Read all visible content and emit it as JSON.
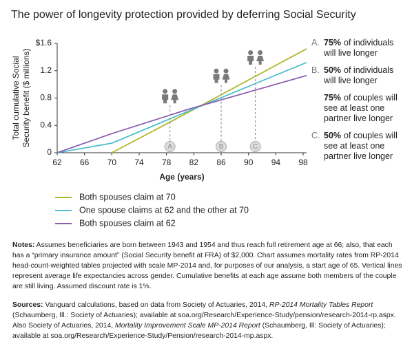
{
  "chart_data": {
    "type": "line",
    "title": "The power of longevity protection provided by deferring Social Security",
    "ylabel": [
      "Total cumulative Social",
      "Security benefit ($ millions)"
    ],
    "xlabel": "Age (years)",
    "x": [
      62,
      70,
      81,
      98.5
    ],
    "series": [
      {
        "name": "Both spouses claim at 70",
        "color": "#b3b52a",
        "values": [
          null,
          0,
          0.58,
          1.52
        ]
      },
      {
        "name": "One spouse claims at 62 and the other at 70",
        "color": "#4cbfcc",
        "values": [
          0,
          0.14,
          0.6,
          1.32
        ]
      },
      {
        "name": "Both spouses claim at 62",
        "color": "#8a5fb0",
        "values": [
          0,
          0.28,
          0.63,
          1.13
        ]
      }
    ],
    "xlim": [
      62,
      98.5
    ],
    "xticks": [
      62,
      66,
      70,
      74,
      78,
      82,
      86,
      90,
      94,
      98
    ],
    "ylim": [
      0,
      1.6
    ],
    "yticks": [
      0,
      0.4,
      0.8,
      1.2,
      {
        "value": 1.6,
        "label": "$1.6"
      }
    ],
    "annotations": [
      {
        "x": 78.5,
        "label": "A"
      },
      {
        "x": 86,
        "label": "B"
      },
      {
        "x": 91,
        "label": "C"
      }
    ],
    "side_notes": [
      {
        "letter": "A.",
        "pct": "75%",
        "lines": [
          "of individuals",
          "will live longer"
        ]
      },
      {
        "letter": "B.",
        "pct": "50%",
        "lines": [
          "of individuals",
          "will live longer"
        ]
      },
      {
        "pct": "75%",
        "lines": [
          "of couples will",
          "see at least one",
          "partner live longer"
        ]
      },
      {
        "letter": "C.",
        "pct": "50%",
        "lines": [
          "of couples will",
          "see at least one",
          "partner live longer"
        ]
      }
    ]
  },
  "notes": {
    "label": "Notes:",
    "text": "Assumes beneficiaries are born between 1943 and 1954 and thus reach full retirement age at 66; also, that each has a “primary insurance amount” (Social Security benefit at FRA) of $2,000. Chart assumes mortality rates from RP-2014 head-count-weighted tables projected with scale MP-2014 and, for purposes of our analysis, a start age of 65. Vertical lines represent average life expectancies across gender. Cumulative benefits at each age assume both members of the couple are still living. Assumed discount rate is 1%."
  },
  "sources": {
    "label": "Sources:",
    "parts": [
      "Vanguard calculations, based on data from Society of Actuaries, 2014, ",
      "RP-2014 Mortality Tables Report",
      " (Schaumberg, Ill.: Society of Actuaries); available at soa.org/Research/Experience-Study/pension/research-2014-rp.aspx. Also Society of Actuaries, 2014, ",
      "Mortality Improvement Scale MP-2014 Report",
      " (Schaumberg, Ill: Society of Actuaries); available at soa.org/Research/Experience-Study/Pension/research-2014-mp.aspx."
    ]
  }
}
